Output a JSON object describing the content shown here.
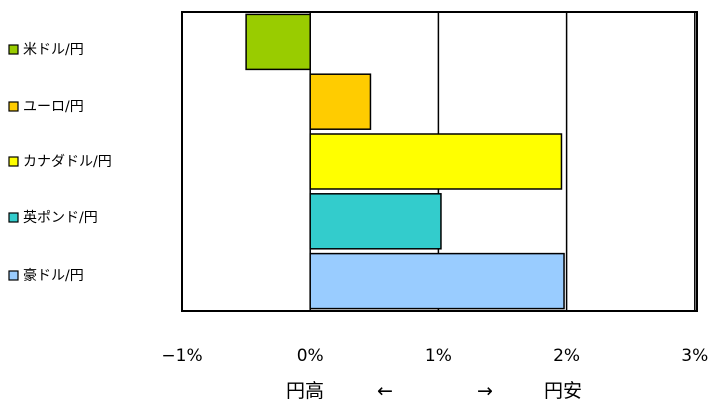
{
  "chart_data": {
    "type": "bar",
    "orientation": "horizontal",
    "categories": [
      "米ドル/円",
      "ユーロ/円",
      "カナダドル/円",
      "英ポンド/円",
      "豪ドル/円"
    ],
    "values": [
      -0.5,
      0.47,
      1.96,
      1.02,
      1.98
    ],
    "unit": "%",
    "xlim": [
      -1,
      3
    ],
    "x_ticks": [
      -1,
      0,
      1,
      2,
      3
    ],
    "x_tick_labels": [
      "−1%",
      "0%",
      "1%",
      "2%",
      "3%"
    ],
    "xlabel": {
      "left": "円高",
      "left_arrow": "←",
      "right_arrow": "→",
      "right": "円安"
    },
    "title": "",
    "grid": "vertical",
    "legend_placement": "left",
    "colors": [
      "#99cc00",
      "#ffcc00",
      "#ffff00",
      "#33cccc",
      "#99ccff"
    ],
    "bar_outline_color": "#000000"
  }
}
